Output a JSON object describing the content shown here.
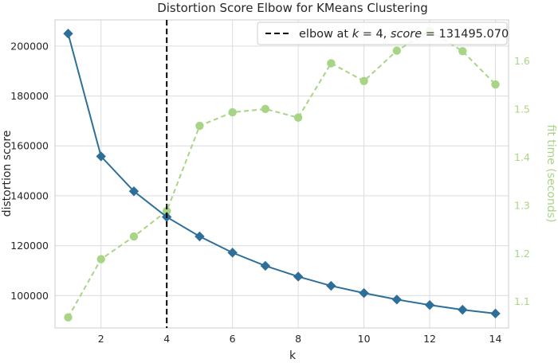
{
  "chart_data": {
    "type": "line",
    "title": "Distortion Score Elbow for KMeans Clustering",
    "xlabel": "k",
    "ylabel": "distortion score",
    "y2label": "fit time (seconds)",
    "xlim": [
      0.6,
      14.4
    ],
    "ylim": [
      87000,
      210500
    ],
    "y2lim": [
      1.045,
      1.685
    ],
    "xticks": [
      2,
      4,
      6,
      8,
      10,
      12,
      14
    ],
    "yticks": [
      100000,
      120000,
      140000,
      160000,
      180000,
      200000
    ],
    "y2ticks": [
      1.1,
      1.2,
      1.3,
      1.4,
      1.5,
      1.6
    ],
    "grid": true,
    "series": [
      {
        "axis": "left",
        "color": "#2e6f9a",
        "marker": "diamond",
        "x": [
          1,
          2,
          3,
          4,
          5,
          6,
          7,
          8,
          9,
          10,
          11,
          12,
          13,
          14
        ],
        "values": [
          205000,
          155800,
          141800,
          131495,
          123700,
          117200,
          111900,
          107600,
          103900,
          101000,
          98400,
          96200,
          94300,
          92800
        ]
      },
      {
        "axis": "right",
        "color": "#a8d585",
        "marker": "circle",
        "x": [
          1,
          2,
          3,
          4,
          5,
          6,
          7,
          8,
          9,
          10,
          11,
          12,
          13,
          14
        ],
        "values": [
          1.067,
          1.188,
          1.235,
          1.288,
          1.465,
          1.493,
          1.5,
          1.482,
          1.595,
          1.558,
          1.621,
          1.662,
          1.62,
          1.551
        ]
      }
    ],
    "elbow": {
      "k": 4,
      "color": "#000000",
      "legend_prefix": "elbow at ",
      "legend_k": "k",
      "legend_mid": " = 4, ",
      "legend_score": "score",
      "legend_value": " = 131495.070",
      "legend_placement": "top-right"
    }
  }
}
